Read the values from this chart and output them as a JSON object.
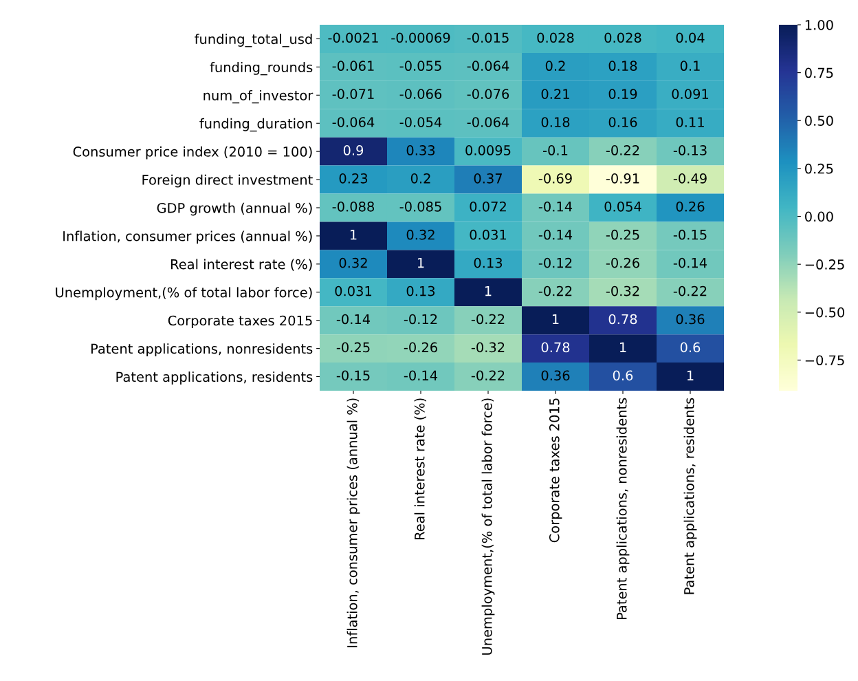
{
  "chart_data": {
    "type": "heatmap",
    "categories": [
      "Inflation, consumer prices (annual %)",
      "Real interest rate (%)",
      "Unemployment,(% of total labor force)",
      "Corporate taxes 2015",
      "Patent applications, nonresidents",
      "Patent applications, residents"
    ],
    "y_categories": [
      "funding_total_usd",
      "funding_rounds",
      "num_of_investor",
      "funding_duration",
      "Consumer price index (2010 = 100)",
      "Foreign direct investment",
      "GDP growth (annual %)",
      "Inflation, consumer prices (annual %)",
      "Real interest rate (%)",
      "Unemployment,(% of total labor force)",
      "Corporate taxes 2015",
      "Patent applications, nonresidents",
      "Patent applications, residents"
    ],
    "cells": [
      [
        -0.0021,
        -0.00069,
        -0.015,
        0.028,
        0.028,
        0.04
      ],
      [
        -0.061,
        -0.055,
        -0.064,
        0.2,
        0.18,
        0.1
      ],
      [
        -0.071,
        -0.066,
        -0.076,
        0.21,
        0.19,
        0.091
      ],
      [
        -0.064,
        -0.054,
        -0.064,
        0.18,
        0.16,
        0.11
      ],
      [
        0.9,
        0.33,
        0.0095,
        -0.1,
        -0.22,
        -0.13
      ],
      [
        0.23,
        0.2,
        0.37,
        -0.69,
        -0.91,
        -0.49
      ],
      [
        -0.088,
        -0.085,
        0.072,
        -0.14,
        0.054,
        0.26
      ],
      [
        1,
        0.32,
        0.031,
        -0.14,
        -0.25,
        -0.15
      ],
      [
        0.32,
        1,
        0.13,
        -0.12,
        -0.26,
        -0.14
      ],
      [
        0.031,
        0.13,
        1,
        -0.22,
        -0.32,
        -0.22
      ],
      [
        -0.14,
        -0.12,
        -0.22,
        1,
        0.78,
        0.36
      ],
      [
        -0.25,
        -0.26,
        -0.32,
        0.78,
        1,
        0.6
      ],
      [
        -0.15,
        -0.14,
        -0.22,
        0.36,
        0.6,
        1
      ]
    ],
    "data_labels": true,
    "clim": [
      -0.91,
      1
    ],
    "cticks": [
      {
        "value": 1,
        "label": "1.00"
      },
      {
        "value": 0.75,
        "label": "0.75"
      },
      {
        "value": 0.5,
        "label": "0.50"
      },
      {
        "value": 0.25,
        "label": "0.25"
      },
      {
        "value": 0,
        "label": "0.00"
      },
      {
        "value": -0.25,
        "label": "−0.25"
      },
      {
        "value": -0.5,
        "label": "−0.50"
      },
      {
        "value": -0.75,
        "label": "−0.75"
      }
    ]
  }
}
